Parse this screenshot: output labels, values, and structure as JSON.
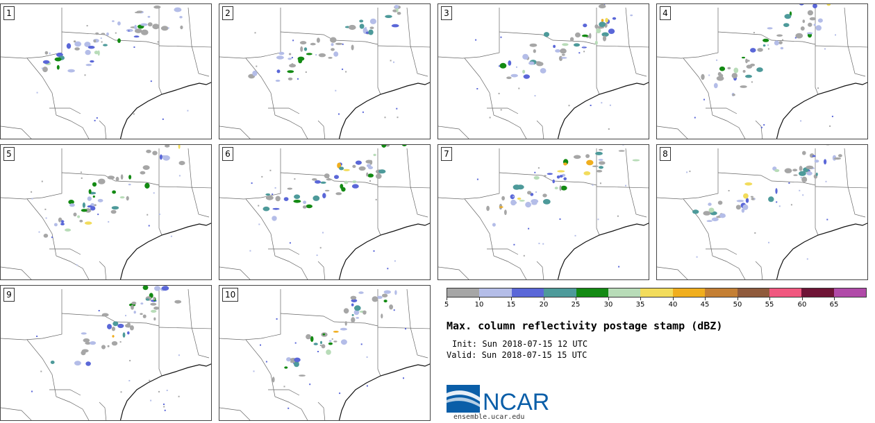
{
  "panels": [
    {
      "label": "1"
    },
    {
      "label": "2"
    },
    {
      "label": "3"
    },
    {
      "label": "4"
    },
    {
      "label": "5"
    },
    {
      "label": "6"
    },
    {
      "label": "7"
    },
    {
      "label": "8"
    },
    {
      "label": "9"
    },
    {
      "label": "10"
    }
  ],
  "colorbar": {
    "colors": [
      "#a6a6a6",
      "#b4bde8",
      "#5a67d8",
      "#4d9a9a",
      "#138a13",
      "#b8dcb8",
      "#f2dc5c",
      "#f0ae1e",
      "#c47f34",
      "#8f5a3c",
      "#f0577f",
      "#6e1436",
      "#b04aa8"
    ],
    "tick_labels": [
      "5",
      "10",
      "15",
      "20",
      "25",
      "30",
      "35",
      "40",
      "45",
      "50",
      "55",
      "60",
      "65"
    ]
  },
  "title": "Max. column reflectivity postage stamp (dBZ)",
  "init_line": "Init: Sun 2018-07-15 12 UTC",
  "valid_line": "Valid: Sun 2018-07-15 15 UTC",
  "logo": {
    "text": "NCAR",
    "url": "ensemble.ucar.edu",
    "brand_color": "#0a5ea8"
  }
}
